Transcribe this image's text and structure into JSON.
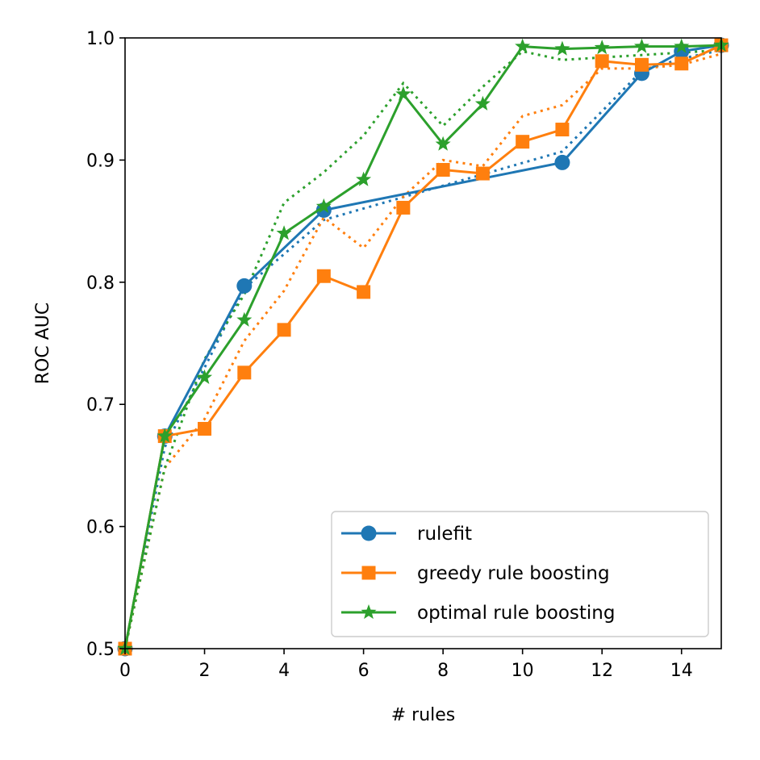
{
  "chart_data": {
    "type": "line",
    "title": "",
    "xlabel": "# rules",
    "ylabel": "ROC AUC",
    "xlim": [
      0,
      15
    ],
    "ylim": [
      0.5,
      1.0
    ],
    "xticks": [
      "0",
      "2",
      "4",
      "6",
      "8",
      "10",
      "12",
      "14"
    ],
    "yticks": [
      "0.5",
      "0.6",
      "0.7",
      "0.8",
      "0.9",
      "1.0"
    ],
    "grid": false,
    "legend_position": "lower right",
    "series": [
      {
        "name": "rulefit",
        "color": "#1f77b4",
        "marker": "circle",
        "style": "solid",
        "x": [
          0,
          1,
          3,
          5,
          11,
          13,
          14,
          15
        ],
        "y": [
          0.5,
          0.674,
          0.797,
          0.859,
          0.898,
          0.971,
          0.989,
          0.994
        ]
      },
      {
        "name": "greedy rule boosting",
        "color": "#ff7f0e",
        "marker": "square",
        "style": "solid",
        "x": [
          0,
          1,
          2,
          3,
          4,
          5,
          6,
          7,
          8,
          9,
          10,
          11,
          12,
          13,
          14,
          15
        ],
        "y": [
          0.5,
          0.674,
          0.68,
          0.726,
          0.761,
          0.805,
          0.792,
          0.861,
          0.892,
          0.889,
          0.915,
          0.925,
          0.981,
          0.978,
          0.979,
          0.994
        ]
      },
      {
        "name": "optimal rule boosting",
        "color": "#2ca02c",
        "marker": "star",
        "style": "solid",
        "x": [
          0,
          1,
          2,
          3,
          4,
          5,
          6,
          7,
          8,
          9,
          10,
          11,
          12,
          13,
          14,
          15
        ],
        "y": [
          0.5,
          0.674,
          0.722,
          0.769,
          0.84,
          0.862,
          0.884,
          0.954,
          0.913,
          0.946,
          0.993,
          0.991,
          0.992,
          0.993,
          0.993,
          0.994
        ]
      },
      {
        "color": "#1f77b4",
        "style": "dotted",
        "x": [
          0,
          1,
          3,
          5,
          11,
          13,
          14,
          15
        ],
        "y": [
          0.5,
          0.665,
          0.795,
          0.851,
          0.907,
          0.973,
          0.983,
          0.99
        ]
      },
      {
        "color": "#ff7f0e",
        "style": "dotted",
        "x": [
          0,
          1,
          2,
          3,
          4,
          5,
          6,
          7,
          8,
          9,
          10,
          11,
          12,
          13,
          14,
          15
        ],
        "y": [
          0.5,
          0.648,
          0.688,
          0.752,
          0.793,
          0.853,
          0.828,
          0.87,
          0.9,
          0.895,
          0.936,
          0.945,
          0.975,
          0.975,
          0.978,
          0.987
        ]
      },
      {
        "color": "#2ca02c",
        "style": "dotted",
        "x": [
          0,
          1,
          2,
          3,
          4,
          5,
          6,
          7,
          8,
          9,
          10,
          11,
          12,
          13,
          14,
          15
        ],
        "y": [
          0.5,
          0.648,
          0.737,
          0.79,
          0.865,
          0.89,
          0.92,
          0.963,
          0.928,
          0.96,
          0.989,
          0.982,
          0.984,
          0.986,
          0.988,
          0.99
        ]
      }
    ]
  }
}
